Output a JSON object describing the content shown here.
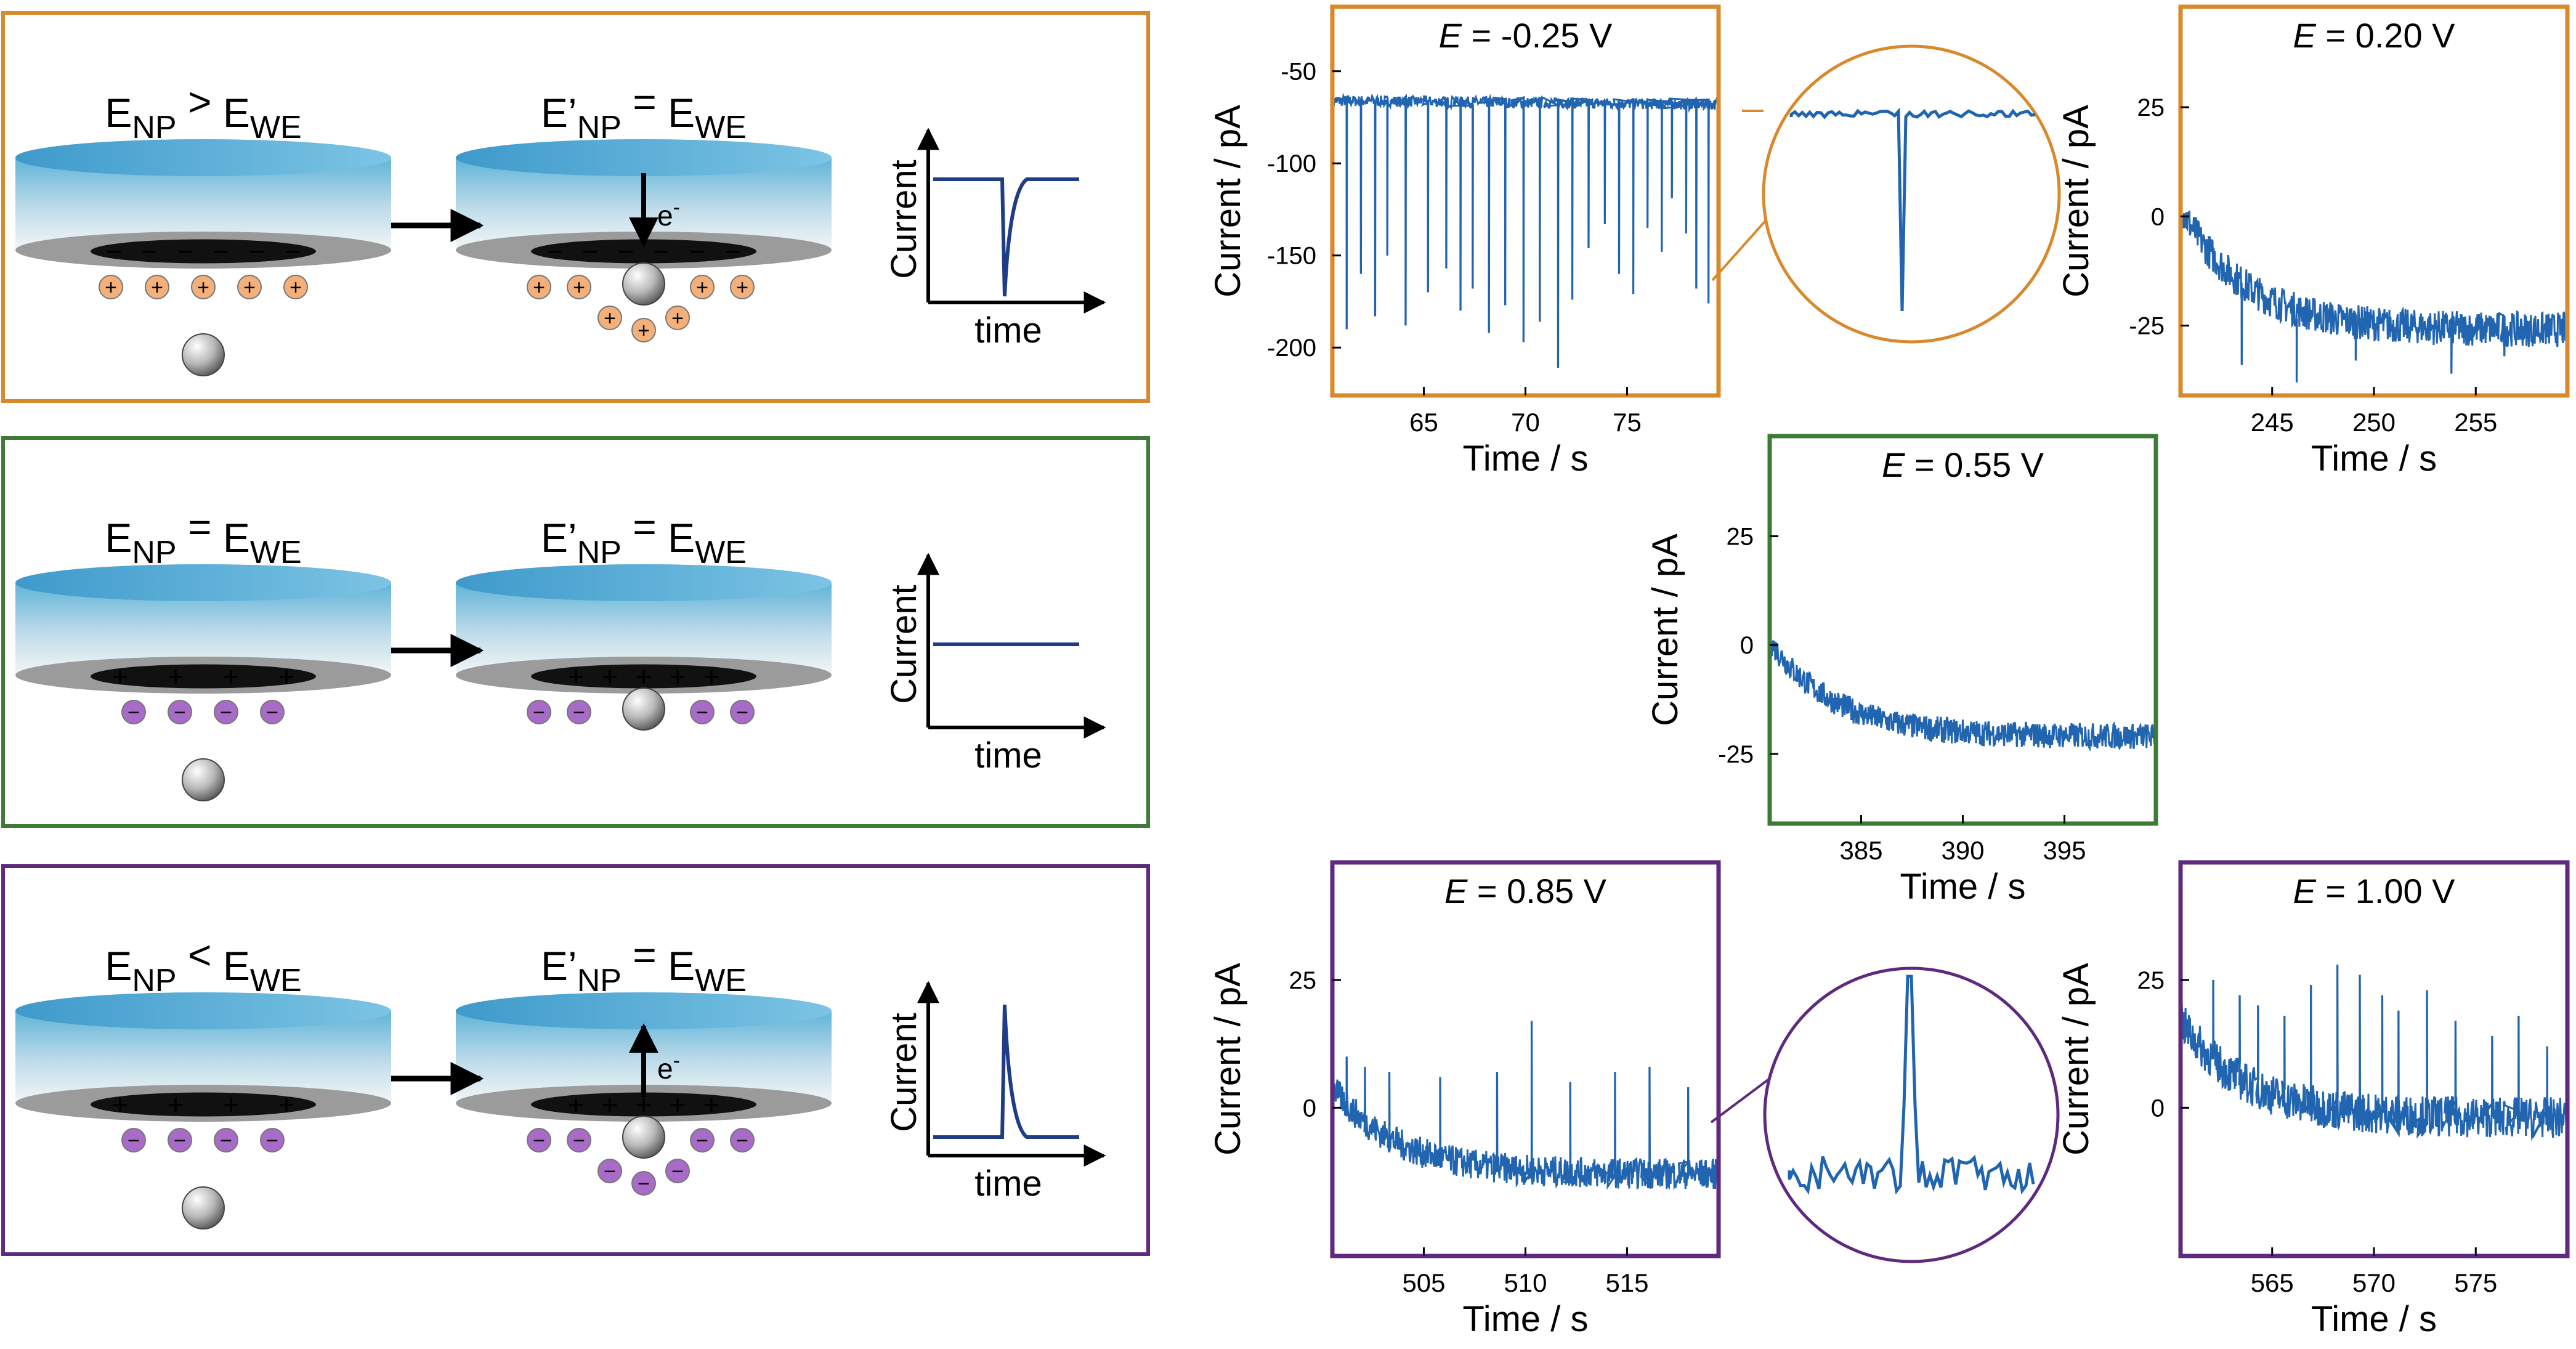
{
  "colors": {
    "orange": "#D9892B",
    "green": "#3D7A36",
    "purple": "#5F2A7E",
    "trace": "#2164B0",
    "sketch_trace": "#1F3C88",
    "pos_ion": "#F4B07A",
    "neg_ion": "#A86CC8"
  },
  "schematic": {
    "rows": [
      {
        "id": "oxidation",
        "before": {
          "base": "E",
          "sub1": "NP",
          "op": ">",
          "base2": "E",
          "sub2": "WE"
        },
        "after": {
          "base": "E’",
          "sub1": "NP",
          "op": "=",
          "base2": "E",
          "sub2": "WE"
        },
        "electron_label": "e",
        "electron_sup": "-",
        "surface_charge": "−",
        "ion_charge": "+",
        "sketch_shape": "negative-spike"
      },
      {
        "id": "no-transfer",
        "before": {
          "base": "E",
          "sub1": "NP",
          "op": "=",
          "base2": "E",
          "sub2": "WE"
        },
        "after": {
          "base": "E’",
          "sub1": "NP",
          "op": "=",
          "base2": "E",
          "sub2": "WE"
        },
        "electron_label": "",
        "electron_sup": "",
        "surface_charge": "+",
        "ion_charge": "−",
        "sketch_shape": "flat"
      },
      {
        "id": "reduction",
        "before": {
          "base": "E",
          "sub1": "NP",
          "op": "<",
          "base2": "E",
          "sub2": "WE"
        },
        "after": {
          "base": "E’",
          "sub1": "NP",
          "op": "=",
          "base2": "E",
          "sub2": "WE"
        },
        "electron_label": "e",
        "electron_sup": "-",
        "surface_charge": "+",
        "ion_charge": "−",
        "sketch_shape": "positive-spike"
      }
    ],
    "sketch_ylabel": "Current",
    "sketch_xlabel": "time"
  },
  "chart_data": [
    {
      "type": "line",
      "id": "p1",
      "title_italic": "E",
      "title_rest": " = -0.25 V",
      "xlabel": "Time / s",
      "ylabel": "Current / pA",
      "xlim": [
        60.5,
        79.5
      ],
      "ylim": [
        -226,
        -15
      ],
      "xticks": [
        65,
        70,
        75
      ],
      "yticks": [
        -50,
        -100,
        -150,
        -200
      ],
      "baseline_start": -66,
      "baseline_end": -68,
      "noise": 3,
      "spikes": [
        [
          61.2,
          -190
        ],
        [
          61.9,
          -160
        ],
        [
          62.6,
          -183
        ],
        [
          63.2,
          -150
        ],
        [
          64.1,
          -188
        ],
        [
          65.2,
          -170
        ],
        [
          66.1,
          -157
        ],
        [
          66.8,
          -180
        ],
        [
          67.4,
          -168
        ],
        [
          68.2,
          -192
        ],
        [
          69.0,
          -177
        ],
        [
          69.9,
          -197
        ],
        [
          70.7,
          -186
        ],
        [
          71.6,
          -211
        ],
        [
          72.3,
          -174
        ],
        [
          73.1,
          -146
        ],
        [
          73.9,
          -133
        ],
        [
          74.6,
          -160
        ],
        [
          75.3,
          -171
        ],
        [
          76.0,
          -135
        ],
        [
          76.7,
          -148
        ],
        [
          77.2,
          -119
        ],
        [
          77.9,
          -138
        ],
        [
          78.4,
          -168
        ],
        [
          79.0,
          -176
        ]
      ],
      "border_color": "orange"
    },
    {
      "type": "line",
      "id": "p2",
      "title_italic": "E",
      "title_rest": " = 0.20 V",
      "xlabel": "Time / s",
      "ylabel": "Current / pA",
      "xlim": [
        240.5,
        259.5
      ],
      "ylim": [
        -41,
        48
      ],
      "xticks": [
        245,
        250,
        255
      ],
      "yticks": [
        25,
        0,
        -25
      ],
      "decay_start": 2,
      "decay_end": -26,
      "noise": 4,
      "spikes": [
        [
          243.5,
          -34
        ],
        [
          246.2,
          -38
        ],
        [
          249.1,
          -33
        ],
        [
          253.8,
          -36
        ],
        [
          256.4,
          -32
        ]
      ],
      "border_color": "orange"
    },
    {
      "type": "line",
      "id": "p3",
      "title_italic": "E",
      "title_rest": " = 0.55 V",
      "xlabel": "Time / s",
      "ylabel": "Current / pA",
      "xlim": [
        380.5,
        399.5
      ],
      "ylim": [
        -41,
        48
      ],
      "xticks": [
        385,
        390,
        395
      ],
      "yticks": [
        25,
        0,
        -25
      ],
      "decay_start": 1,
      "decay_end": -21,
      "noise": 3,
      "spikes": [],
      "border_color": "green"
    },
    {
      "type": "line",
      "id": "p4",
      "title_italic": "E",
      "title_rest": " = 0.85 V",
      "xlabel": "Time / s",
      "ylabel": "Current / pA",
      "xlim": [
        500.5,
        519.5
      ],
      "ylim": [
        -29,
        48
      ],
      "xticks": [
        505,
        510,
        515
      ],
      "yticks": [
        25,
        0
      ],
      "decay_start": 4,
      "decay_end": -13,
      "noise": 3,
      "spikes": [
        [
          501.2,
          10
        ],
        [
          502.1,
          8
        ],
        [
          503.3,
          7
        ],
        [
          505.8,
          6
        ],
        [
          508.6,
          7
        ],
        [
          510.3,
          17
        ],
        [
          512.2,
          5
        ],
        [
          514.4,
          7
        ],
        [
          516.1,
          8
        ],
        [
          518.0,
          4
        ]
      ],
      "border_color": "purple"
    },
    {
      "type": "line",
      "id": "p5",
      "title_italic": "E",
      "title_rest": " = 1.00 V",
      "xlabel": "Time / s",
      "ylabel": "Current / pA",
      "xlim": [
        560.5,
        579.5
      ],
      "ylim": [
        -29,
        48
      ],
      "xticks": [
        565,
        570,
        575
      ],
      "yticks": [
        25,
        0
      ],
      "decay_start": 17,
      "decay_end": -2,
      "noise": 4,
      "spikes": [
        [
          562.1,
          25
        ],
        [
          563.4,
          22
        ],
        [
          564.3,
          20
        ],
        [
          565.6,
          18
        ],
        [
          566.9,
          24
        ],
        [
          568.2,
          28
        ],
        [
          569.3,
          26
        ],
        [
          570.4,
          22
        ],
        [
          571.2,
          19
        ],
        [
          572.6,
          23
        ],
        [
          574.0,
          17
        ],
        [
          575.8,
          14
        ],
        [
          577.1,
          18
        ],
        [
          578.5,
          12
        ]
      ],
      "border_color": "purple"
    }
  ]
}
